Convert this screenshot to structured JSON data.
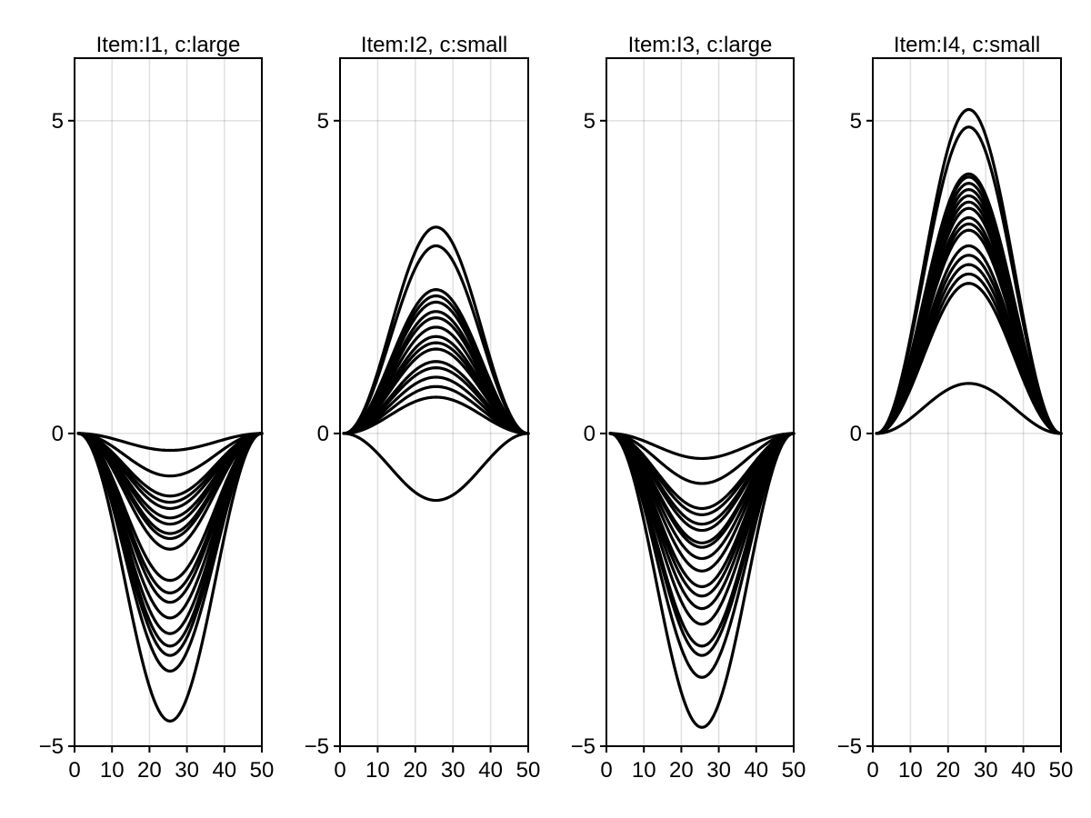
{
  "chart_data": [
    {
      "type": "line",
      "title": "Item:I1, c:large",
      "xlim": [
        0,
        50
      ],
      "ylim": [
        -5,
        6
      ],
      "xticks": [
        0,
        10,
        20,
        30,
        40,
        50
      ],
      "yticks": [
        -5,
        0,
        5
      ],
      "xtick_labels": [
        "0",
        "10",
        "20",
        "30",
        "40",
        "50"
      ],
      "ytick_labels": [
        "−5",
        "0",
        "5"
      ],
      "grid": true,
      "line_color": "#000000",
      "curve_shape": "bell curve from x=1 to x=50, value 0 at both ends, extreme at x≈25.5",
      "x_start": 1,
      "x_end": 50,
      "peak_values": [
        -0.27,
        -0.68,
        -1.0,
        -1.1,
        -1.2,
        -1.35,
        -1.45,
        -1.6,
        -1.68,
        -1.85,
        -2.35,
        -2.55,
        -2.7,
        -2.95,
        -3.2,
        -3.4,
        -3.55,
        -3.8,
        -4.6
      ]
    },
    {
      "type": "line",
      "title": "Item:I2, c:small",
      "xlim": [
        0,
        50
      ],
      "ylim": [
        -5,
        6
      ],
      "xticks": [
        0,
        10,
        20,
        30,
        40,
        50
      ],
      "yticks": [
        -5,
        0,
        5
      ],
      "xtick_labels": [
        "0",
        "10",
        "20",
        "30",
        "40",
        "50"
      ],
      "ytick_labels": [
        "−5",
        "0",
        "5"
      ],
      "grid": true,
      "line_color": "#000000",
      "curve_shape": "bell curve from x=1 to x=50, value 0 at both ends, extreme at x≈25.5",
      "x_start": 1,
      "x_end": 50,
      "peak_values": [
        3.3,
        3.0,
        2.3,
        2.2,
        2.1,
        1.95,
        1.85,
        1.7,
        1.55,
        1.45,
        1.35,
        1.15,
        1.05,
        0.9,
        0.75,
        0.58,
        -1.07
      ]
    },
    {
      "type": "line",
      "title": "Item:I3, c:large",
      "xlim": [
        0,
        50
      ],
      "ylim": [
        -5,
        6
      ],
      "xticks": [
        0,
        10,
        20,
        30,
        40,
        50
      ],
      "yticks": [
        -5,
        0,
        5
      ],
      "xtick_labels": [
        "0",
        "10",
        "20",
        "30",
        "40",
        "50"
      ],
      "ytick_labels": [
        "−5",
        "0",
        "5"
      ],
      "grid": true,
      "line_color": "#000000",
      "curve_shape": "bell curve from x=1 to x=50, value 0 at both ends, extreme at x≈25.5",
      "x_start": 1,
      "x_end": 50,
      "peak_values": [
        -0.4,
        -0.8,
        -1.2,
        -1.3,
        -1.45,
        -1.55,
        -1.75,
        -1.82,
        -2.0,
        -2.2,
        -2.45,
        -2.6,
        -2.8,
        -3.05,
        -3.4,
        -3.55,
        -3.9,
        -4.7
      ]
    },
    {
      "type": "line",
      "title": "Item:I4, c:small",
      "xlim": [
        0,
        50
      ],
      "ylim": [
        -5,
        6
      ],
      "xticks": [
        0,
        10,
        20,
        30,
        40,
        50
      ],
      "yticks": [
        -5,
        0,
        5
      ],
      "xtick_labels": [
        "0",
        "10",
        "20",
        "30",
        "40",
        "50"
      ],
      "ytick_labels": [
        "−5",
        "0",
        "5"
      ],
      "grid": true,
      "line_color": "#000000",
      "curve_shape": "bell curve from x=1 to x=50, value 0 at both ends, extreme at x≈25.5",
      "x_start": 1,
      "x_end": 50,
      "peak_values": [
        5.18,
        4.9,
        4.15,
        4.1,
        4.0,
        3.9,
        3.8,
        3.7,
        3.6,
        3.45,
        3.35,
        3.25,
        3.0,
        2.85,
        2.7,
        2.55,
        2.4,
        0.8
      ]
    }
  ]
}
